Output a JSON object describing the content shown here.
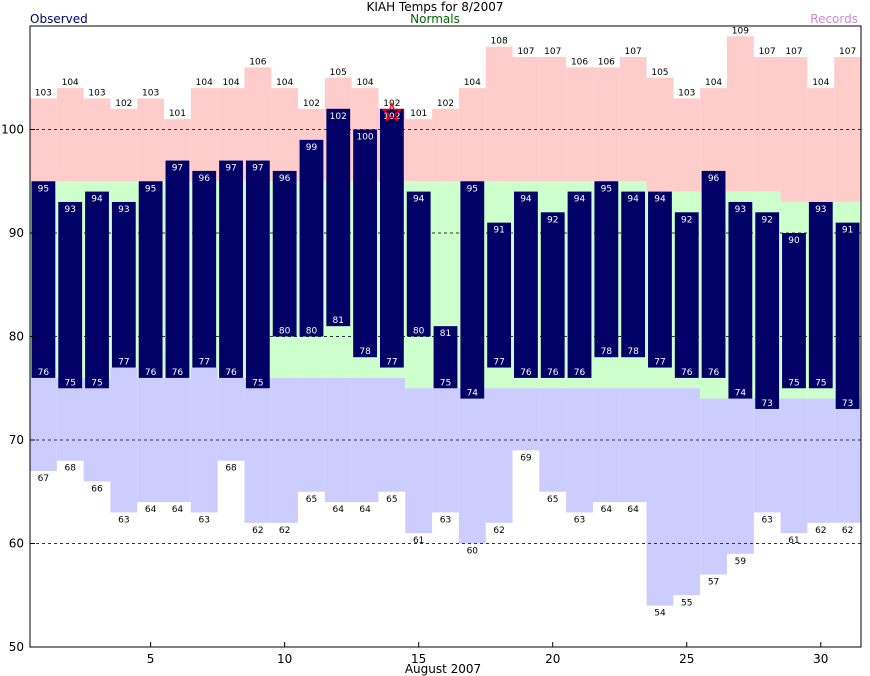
{
  "chart_data": {
    "type": "bar",
    "title": "KIAH Temps for 8/2007",
    "xlabel": "August 2007",
    "ylabel": "",
    "legend": {
      "observed": "Observed",
      "normals": "Normals",
      "records": "Records"
    },
    "colors": {
      "observed": "#000066",
      "normals_band": "#ccffcc",
      "record_high_band": "#ffcccc",
      "record_low_band": "#ccccff",
      "observed_legend": "#000066",
      "normals_legend": "#006600",
      "records_legend": "#cc88cc",
      "star": "#ff0000"
    },
    "ylim": [
      50,
      110
    ],
    "xlim": [
      0.5,
      31.5
    ],
    "yticks": [
      50,
      60,
      70,
      80,
      90,
      100
    ],
    "xticks": [
      5,
      10,
      15,
      20,
      25,
      30
    ],
    "gridlines": [
      60,
      70,
      80,
      90,
      100
    ],
    "days": [
      1,
      2,
      3,
      4,
      5,
      6,
      7,
      8,
      9,
      10,
      11,
      12,
      13,
      14,
      15,
      16,
      17,
      18,
      19,
      20,
      21,
      22,
      23,
      24,
      25,
      26,
      27,
      28,
      29,
      30,
      31
    ],
    "observed_high": [
      95,
      93,
      94,
      93,
      95,
      97,
      96,
      97,
      97,
      96,
      99,
      102,
      100,
      102,
      94,
      81,
      95,
      91,
      94,
      92,
      94,
      95,
      94,
      94,
      92,
      96,
      93,
      92,
      90,
      93,
      91
    ],
    "observed_low": [
      76,
      75,
      75,
      77,
      76,
      76,
      77,
      76,
      75,
      80,
      80,
      81,
      78,
      77,
      80,
      75,
      74,
      77,
      76,
      76,
      76,
      78,
      78,
      77,
      76,
      76,
      74,
      73,
      75,
      75,
      73
    ],
    "normal_high": [
      95,
      95,
      95,
      95,
      95,
      95,
      95,
      95,
      95,
      95,
      95,
      95,
      95,
      95,
      95,
      95,
      95,
      95,
      95,
      95,
      95,
      95,
      95,
      94,
      94,
      94,
      94,
      94,
      93,
      93,
      93
    ],
    "normal_low": [
      76,
      76,
      76,
      77,
      76,
      76,
      77,
      76,
      76,
      76,
      76,
      76,
      76,
      76,
      75,
      75,
      75,
      75,
      75,
      75,
      75,
      75,
      75,
      75,
      75,
      74,
      74,
      74,
      74,
      74,
      74
    ],
    "record_high": [
      103,
      104,
      103,
      102,
      103,
      101,
      104,
      104,
      106,
      104,
      102,
      105,
      104,
      102,
      101,
      102,
      104,
      108,
      107,
      107,
      106,
      106,
      107,
      105,
      103,
      104,
      109,
      107,
      107,
      104,
      107
    ],
    "record_low": [
      67,
      68,
      66,
      63,
      64,
      64,
      63,
      68,
      62,
      62,
      65,
      64,
      64,
      65,
      61,
      63,
      60,
      62,
      69,
      65,
      63,
      64,
      64,
      54,
      55,
      57,
      59,
      63,
      61,
      62,
      62
    ],
    "record_star_days": [
      14
    ]
  }
}
